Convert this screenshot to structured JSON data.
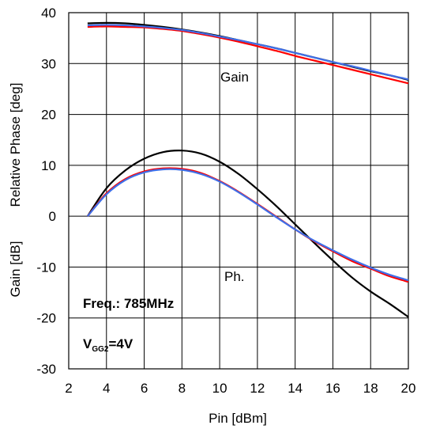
{
  "chart_data": {
    "type": "line",
    "xlabel": "Pin [dBm]",
    "ylabel_top": "Relative Phase  [deg]",
    "ylabel_bottom": "Gain  [dB]",
    "xlim": [
      2,
      20
    ],
    "ylim": [
      -30,
      40
    ],
    "x_ticks": [
      2,
      4,
      6,
      8,
      10,
      12,
      14,
      16,
      18,
      20
    ],
    "y_ticks": [
      -30,
      -20,
      -10,
      0,
      10,
      20,
      30,
      40
    ],
    "grid": true,
    "annotations": {
      "gain": "Gain",
      "phase": "Ph.",
      "freq": "Freq.: 785MHz",
      "vgg_main": "V",
      "vgg_sub": "GG2",
      "vgg_value": "=4V"
    },
    "series": [
      {
        "color": "#000000",
        "x": [
          3,
          4,
          5,
          6,
          7,
          8,
          9,
          10,
          11,
          12,
          13,
          14,
          15,
          16,
          17,
          18,
          19,
          20
        ],
        "gain": [
          37.9,
          38.0,
          37.9,
          37.6,
          37.2,
          36.7,
          36.1,
          35.4,
          34.6,
          33.8,
          33.0,
          32.1,
          31.2,
          30.3,
          29.4,
          28.5,
          27.7,
          26.8
        ],
        "phase": [
          0,
          5.5,
          9.0,
          11.3,
          12.6,
          12.9,
          12.3,
          10.7,
          8.3,
          5.3,
          2.0,
          -1.6,
          -5.2,
          -8.7,
          -12.0,
          -14.8,
          -17.2,
          -19.8
        ]
      },
      {
        "color": "#ff0000",
        "x": [
          3,
          4,
          5,
          6,
          7,
          8,
          9,
          10,
          11,
          12,
          13,
          14,
          15,
          16,
          17,
          18,
          19,
          20
        ],
        "gain": [
          37.2,
          37.3,
          37.2,
          37.1,
          36.8,
          36.4,
          35.8,
          35.1,
          34.3,
          33.4,
          32.5,
          31.5,
          30.6,
          29.7,
          28.8,
          27.9,
          27.0,
          26.1
        ],
        "phase": [
          0,
          4.5,
          7.3,
          8.8,
          9.4,
          9.3,
          8.5,
          6.9,
          4.8,
          2.4,
          -0.1,
          -2.6,
          -4.9,
          -6.9,
          -8.8,
          -10.3,
          -11.8,
          -12.9
        ]
      },
      {
        "color": "#3f6fe8",
        "x": [
          3,
          4,
          5,
          6,
          7,
          8,
          9,
          10,
          11,
          12,
          13,
          14,
          15,
          16,
          17,
          18,
          19,
          20
        ],
        "gain": [
          37.5,
          37.6,
          37.5,
          37.3,
          37.0,
          36.6,
          36.0,
          35.3,
          34.6,
          33.8,
          33.0,
          32.1,
          31.2,
          30.3,
          29.5,
          28.6,
          27.7,
          26.9
        ],
        "phase": [
          0,
          4.3,
          7.1,
          8.6,
          9.2,
          9.1,
          8.3,
          6.8,
          4.7,
          2.3,
          -0.2,
          -2.6,
          -4.8,
          -6.7,
          -8.5,
          -10.1,
          -11.5,
          -12.6
        ]
      }
    ]
  }
}
